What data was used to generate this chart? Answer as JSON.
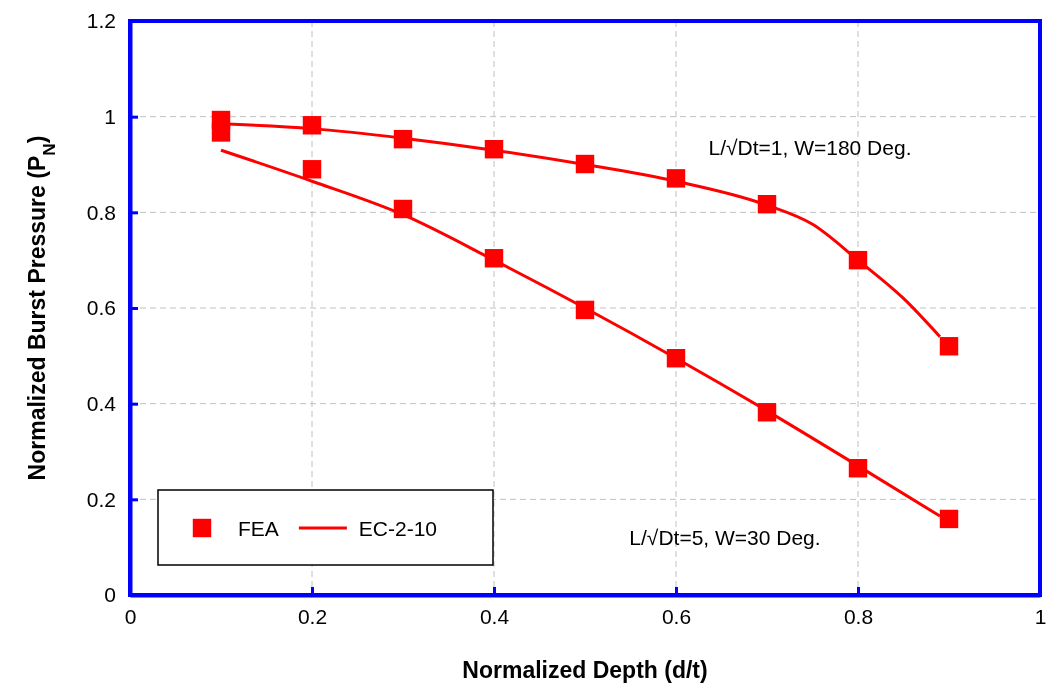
{
  "chart_data": {
    "type": "scatter",
    "xlabel": "Normalized Depth (d/t)",
    "ylabel": "Normalized Burst Pressure (P$_{N}$)",
    "xlim": [
      0,
      1
    ],
    "xticks": [
      0,
      0.2,
      0.4,
      0.6,
      0.8,
      1
    ],
    "ylim": [
      0,
      1.2
    ],
    "yticks": [
      0,
      0.2,
      0.4,
      0.6,
      0.8,
      1,
      1.2
    ],
    "grid": true,
    "legend": "bottom left",
    "series": [
      {
        "name": "FEA",
        "marker": "square",
        "color": "#ff0000",
        "x": [
          0.1,
          0.2,
          0.3,
          0.4,
          0.5,
          0.6,
          0.7,
          0.8,
          0.9,
          0.1,
          0.2,
          0.3,
          0.4,
          0.5,
          0.6,
          0.7,
          0.8,
          0.9
        ],
        "values": [
          0.993,
          0.982,
          0.953,
          0.932,
          0.901,
          0.871,
          0.817,
          0.7,
          0.52,
          0.967,
          0.89,
          0.807,
          0.704,
          0.596,
          0.495,
          0.382,
          0.265,
          0.159
        ]
      },
      {
        "name": "EC-2-10",
        "type": "line",
        "marker": "none",
        "color": "#ff0000",
        "line_style": "solid",
        "x": [
          0.1,
          0.2,
          0.3,
          0.4,
          0.5,
          0.6,
          0.7,
          0.75,
          0.8,
          0.85,
          0.89
        ],
        "values": [
          0.985,
          0.975,
          0.955,
          0.93,
          0.9,
          0.865,
          0.815,
          0.775,
          0.7,
          0.62,
          0.54
        ]
      },
      {
        "type": "line",
        "marker": "none",
        "color": "#ff0000",
        "line_style": "solid",
        "x": [
          0.1,
          0.2,
          0.3,
          0.4,
          0.5,
          0.6,
          0.7,
          0.8,
          0.89
        ],
        "values": [
          0.93,
          0.865,
          0.795,
          0.7,
          0.6,
          0.495,
          0.385,
          0.27,
          0.165
        ]
      }
    ],
    "annotations": [
      "L/√Dt=1, W=180 Deg.",
      "L/√Dt=5, W=30 Deg."
    ]
  }
}
